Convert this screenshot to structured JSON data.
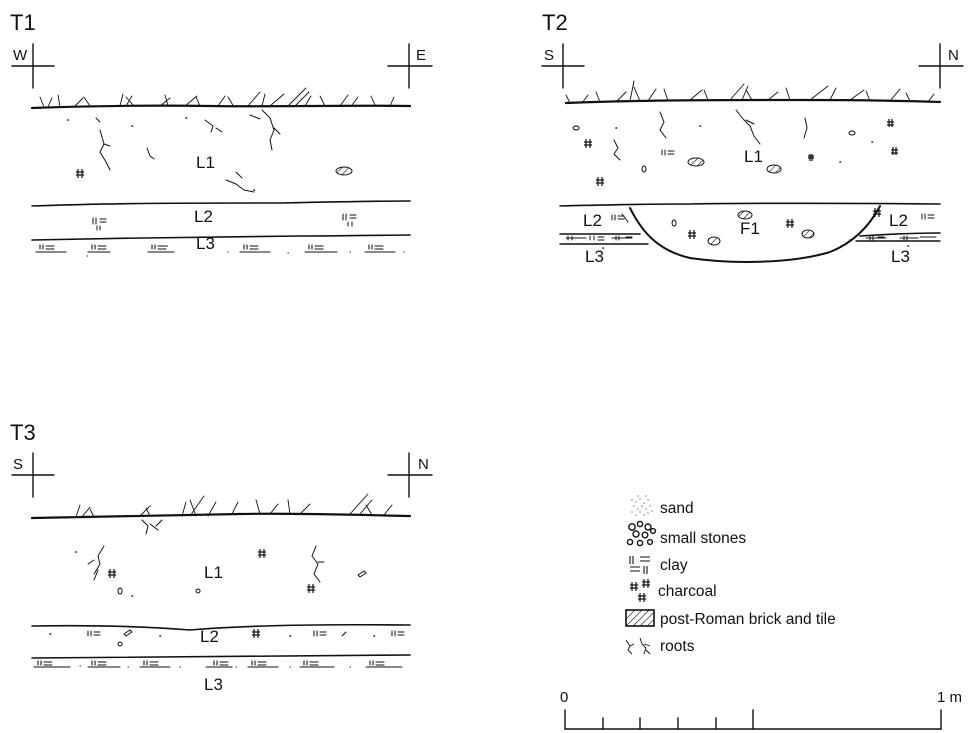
{
  "sections": [
    {
      "title": "T1",
      "dir_left": "W",
      "dir_right": "E",
      "layers": [
        "L1",
        "L2",
        "L3"
      ]
    },
    {
      "title": "T2",
      "dir_left": "S",
      "dir_right": "N",
      "layers": [
        "L1",
        "L2",
        "L2",
        "L3",
        "L3"
      ],
      "feature": "F1"
    },
    {
      "title": "T3",
      "dir_left": "S",
      "dir_right": "N",
      "layers": [
        "L1",
        "L2",
        "L3"
      ]
    }
  ],
  "legend": [
    {
      "icon": "sand-icon",
      "label": "sand"
    },
    {
      "icon": "small-stones-icon",
      "label": "small stones"
    },
    {
      "icon": "clay-icon",
      "label": "clay"
    },
    {
      "icon": "charcoal-icon",
      "label": "charcoal"
    },
    {
      "icon": "brick-tile-icon",
      "label": "post-Roman brick and tile"
    },
    {
      "icon": "roots-icon",
      "label": "roots"
    }
  ],
  "scale": {
    "start": "0",
    "end": "1 m"
  }
}
